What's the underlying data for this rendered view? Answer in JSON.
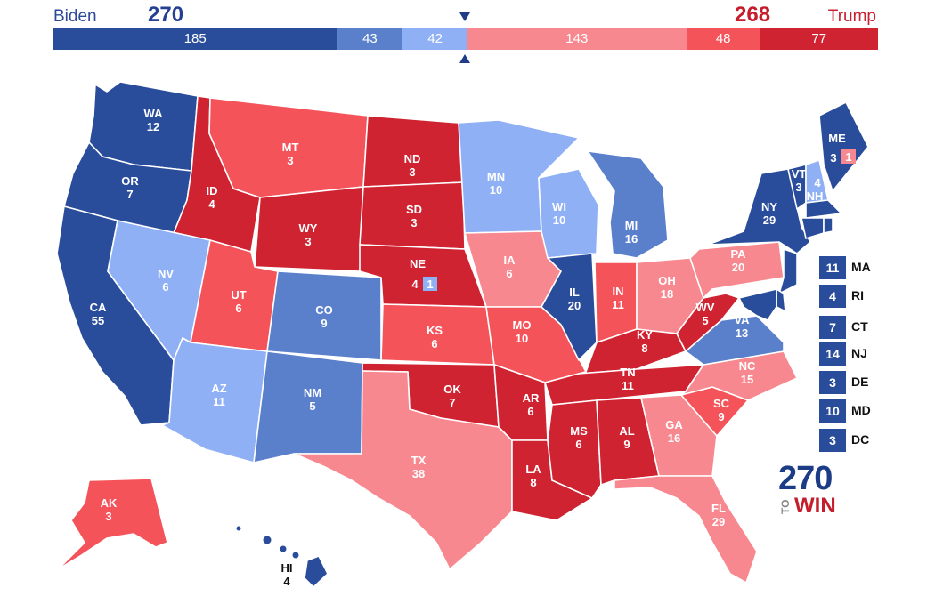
{
  "header": {
    "dem_name": "Biden",
    "dem_total": "270",
    "rep_name": "Trump",
    "rep_total": "268"
  },
  "bar_segments": [
    {
      "label": "185",
      "color": "#2a4d9b"
    },
    {
      "label": "43",
      "color": "#5a80cc"
    },
    {
      "label": "42",
      "color": "#8fb0f5"
    },
    {
      "label": "143",
      "color": "#f8888f"
    },
    {
      "label": "48",
      "color": "#f4535a"
    },
    {
      "label": "77",
      "color": "#cf2331"
    }
  ],
  "colors": {
    "safe_dem": "#2a4d9b",
    "likely_dem": "#5a80cc",
    "lean_dem": "#8fb0f5",
    "lean_rep": "#f8888f",
    "likely_rep": "#f4535a",
    "safe_rep": "#cf2331"
  },
  "states": {
    "WA": "12",
    "OR": "7",
    "CA": "55",
    "ID": "4",
    "NV": "6",
    "MT": "3",
    "WY": "3",
    "UT": "6",
    "AZ": "11",
    "CO": "9",
    "NM": "5",
    "ND": "3",
    "SD": "3",
    "NE": "4",
    "NE_CD": "1",
    "KS": "6",
    "OK": "7",
    "TX": "38",
    "MN": "10",
    "IA": "6",
    "MO": "10",
    "AR": "6",
    "LA": "8",
    "WI": "10",
    "IL": "20",
    "MI": "16",
    "IN": "11",
    "OH": "18",
    "KY": "8",
    "TN": "11",
    "MS": "6",
    "AL": "9",
    "GA": "16",
    "FL": "29",
    "SC": "9",
    "NC": "15",
    "VA": "13",
    "WV": "5",
    "PA": "20",
    "NY": "29",
    "VT": "3",
    "NH": "4",
    "ME": "3",
    "ME_CD": "1",
    "AK": "3",
    "HI": "4"
  },
  "small_states": [
    {
      "abbr": "MA",
      "ev": "11"
    },
    {
      "abbr": "RI",
      "ev": "4"
    },
    {
      "abbr": "CT",
      "ev": "7"
    },
    {
      "abbr": "NJ",
      "ev": "14"
    },
    {
      "abbr": "DE",
      "ev": "3"
    },
    {
      "abbr": "MD",
      "ev": "10"
    },
    {
      "abbr": "DC",
      "ev": "3"
    }
  ],
  "logo": {
    "number": "270",
    "to": "TO",
    "win": "WIN"
  }
}
